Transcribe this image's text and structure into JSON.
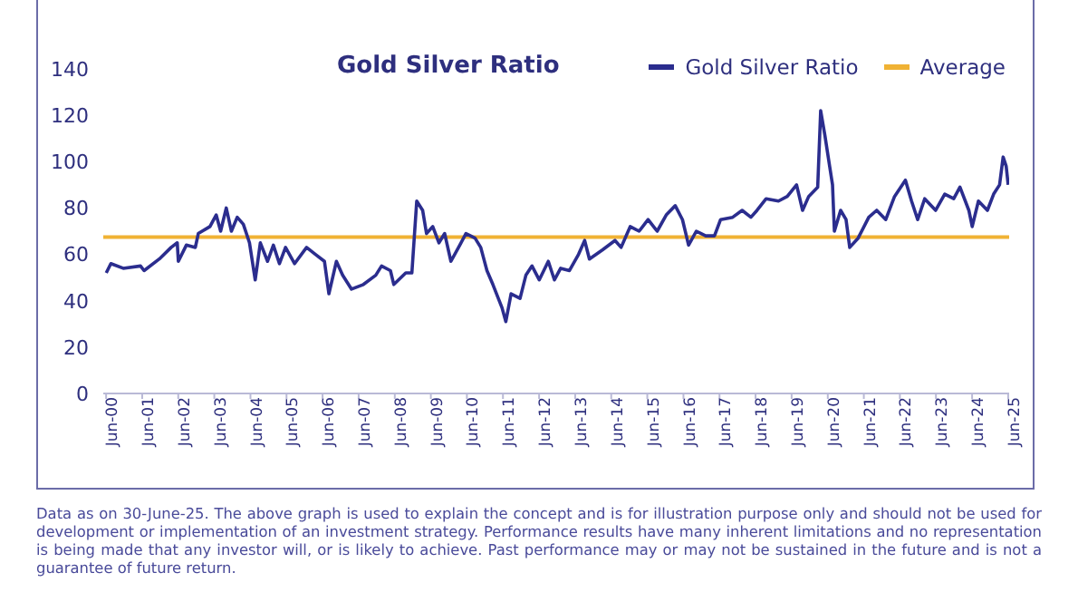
{
  "chart_data": {
    "type": "line",
    "title": "Gold Silver Ratio",
    "legend": "top right",
    "marker": "none",
    "line_style": "solid",
    "x": [
      "2000-07-01",
      "2000-08-17",
      "2000-12-20",
      "2001-06-13",
      "2001-07-19",
      "2001-12-20",
      "2002-04-19",
      "2002-06-20",
      "2002-07-01",
      "2002-09-20",
      "2002-12-20",
      "2003-01-19",
      "2003-05-17",
      "2003-07-19",
      "2003-09-02",
      "2003-10-29",
      "2003-12-20",
      "2004-02-17",
      "2004-04-19",
      "2004-06-20",
      "2004-08-17",
      "2004-10-08",
      "2004-12-20",
      "2005-02-17",
      "2005-04-19",
      "2005-06-20",
      "2005-09-20",
      "2006-01-19",
      "2006-04-19",
      "2006-07-19",
      "2006-09-02",
      "2006-11-17",
      "2007-01-19",
      "2007-04-19",
      "2007-08-17",
      "2007-12-20",
      "2008-02-17",
      "2008-05-17",
      "2008-06-20",
      "2008-10-19",
      "2008-12-20",
      "2009-02-07",
      "2009-04-08",
      "2009-05-17",
      "2009-07-19",
      "2009-09-20",
      "2009-11-17",
      "2010-01-19",
      "2010-04-19",
      "2010-06-20",
      "2010-09-20",
      "2010-11-17",
      "2011-01-19",
      "2011-03-20",
      "2011-06-20",
      "2011-07-29",
      "2011-09-20",
      "2011-12-20",
      "2012-02-17",
      "2012-04-19",
      "2012-07-01",
      "2012-10-01",
      "2012-12-02",
      "2013-02-03",
      "2013-05-03",
      "2013-08-03",
      "2013-10-04",
      "2013-11-21",
      "2014-04-04",
      "2014-08-07",
      "2014-10-08",
      "2015-01-08",
      "2015-04-08",
      "2015-07-08",
      "2015-10-08",
      "2016-01-08",
      "2016-04-08",
      "2016-06-20",
      "2016-08-21",
      "2016-11-07",
      "2017-02-10",
      "2017-05-10",
      "2017-07-11",
      "2017-11-10",
      "2018-02-14",
      "2018-05-14",
      "2018-07-15",
      "2018-10-15",
      "2019-02-17",
      "2019-05-17",
      "2019-08-19",
      "2019-10-19",
      "2019-12-20",
      "2020-03-20",
      "2020-04-19",
      "2020-06-02",
      "2020-07-19",
      "2020-08-17",
      "2020-09-05",
      "2020-11-07",
      "2021-01-01",
      "2021-02-07",
      "2021-05-03",
      "2021-08-19",
      "2021-11-07",
      "2022-02-07",
      "2022-05-07",
      "2022-08-25",
      "2022-10-26",
      "2022-12-27",
      "2023-03-08",
      "2023-06-27",
      "2023-09-27",
      "2023-12-27",
      "2024-02-28",
      "2024-05-28",
      "2024-07-01",
      "2024-09-02",
      "2024-12-02",
      "2025-02-03",
      "2025-04-04",
      "2025-05-10",
      "2025-06-10",
      "2025-06-30"
    ],
    "series": [
      {
        "name": "Gold Silver Ratio",
        "color": "#2b2d8e",
        "values": [
          52,
          56,
          54,
          55,
          53,
          58,
          63,
          65,
          57,
          64,
          63,
          69,
          72,
          77,
          70,
          80,
          70,
          76,
          73,
          65,
          49,
          65,
          57,
          64,
          56,
          63,
          56,
          63,
          60,
          57,
          43,
          57,
          51,
          45,
          47,
          51,
          55,
          53,
          47,
          52,
          52,
          83,
          79,
          69,
          72,
          65,
          69,
          57,
          64,
          69,
          67,
          63,
          53,
          47,
          37,
          31,
          43,
          41,
          51,
          55,
          49,
          57,
          49,
          54,
          53,
          60,
          66,
          58,
          62,
          66,
          63,
          72,
          70,
          75,
          70,
          77,
          81,
          75,
          64,
          70,
          68,
          68,
          75,
          76,
          79,
          76,
          79,
          84,
          83,
          85,
          90,
          79,
          85,
          89,
          122,
          111,
          98,
          90,
          70,
          79,
          75,
          63,
          67,
          76,
          79,
          75,
          85,
          92,
          83,
          75,
          84,
          79,
          86,
          84,
          89,
          79,
          72,
          83,
          79,
          86,
          90,
          102,
          98,
          90
        ]
      }
    ],
    "xlim": [
      "2000-06-01",
      "2025-07-10"
    ],
    "xticks": [
      {
        "value": "2000-06-30",
        "label": "Jun-00"
      },
      {
        "value": "2001-06-30",
        "label": "Jun-01"
      },
      {
        "value": "2002-06-30",
        "label": "Jun-02"
      },
      {
        "value": "2003-06-30",
        "label": "Jun-03"
      },
      {
        "value": "2004-06-30",
        "label": "Jun-04"
      },
      {
        "value": "2005-06-30",
        "label": "Jun-05"
      },
      {
        "value": "2006-06-30",
        "label": "Jun-06"
      },
      {
        "value": "2007-06-30",
        "label": "Jun-07"
      },
      {
        "value": "2008-06-30",
        "label": "Jun-08"
      },
      {
        "value": "2009-06-30",
        "label": "Jun-09"
      },
      {
        "value": "2010-06-30",
        "label": "Jun-10"
      },
      {
        "value": "2011-06-30",
        "label": "Jun-11"
      },
      {
        "value": "2012-06-30",
        "label": "Jun-12"
      },
      {
        "value": "2013-06-30",
        "label": "Jun-13"
      },
      {
        "value": "2014-06-30",
        "label": "Jun-14"
      },
      {
        "value": "2015-06-30",
        "label": "Jun-15"
      },
      {
        "value": "2016-06-30",
        "label": "Jun-16"
      },
      {
        "value": "2017-06-30",
        "label": "Jun-17"
      },
      {
        "value": "2018-06-30",
        "label": "Jun-18"
      },
      {
        "value": "2019-06-30",
        "label": "Jun-19"
      },
      {
        "value": "2020-06-30",
        "label": "Jun-20"
      },
      {
        "value": "2021-06-30",
        "label": "Jun-21"
      },
      {
        "value": "2022-06-30",
        "label": "Jun-22"
      },
      {
        "value": "2023-06-30",
        "label": "Jun-23"
      },
      {
        "value": "2024-06-30",
        "label": "Jun-24"
      },
      {
        "value": "2025-06-30",
        "label": "Jun-25"
      }
    ],
    "ylim": [
      0,
      140
    ],
    "yticks": [
      0,
      20,
      40,
      60,
      80,
      100,
      120,
      140
    ],
    "ref_lines": [
      {
        "axis": "y",
        "value": 67.5,
        "label": "Average",
        "color": "#f0b234"
      }
    ],
    "annotations": [
      "Data as on 30-June-25. The above graph is used to explain the concept and is for illustration purpose only and should not be used for development or implementation of an investment strategy. Performance results have many inherent limitations and no representation is being made that any investor will, or is likely to achieve. Past performance may or may not be sustained in the future and is not a guarantee of future return."
    ]
  }
}
